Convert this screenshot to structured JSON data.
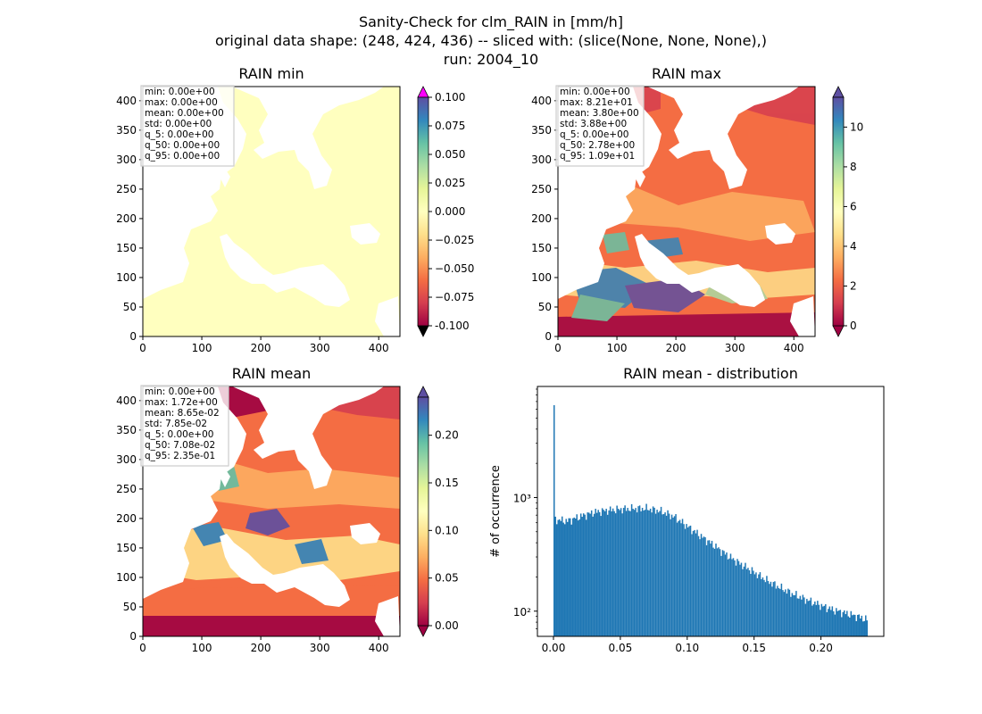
{
  "figure": {
    "title_lines": [
      "Sanity-Check for clm_RAIN in [mm/h]",
      "original data shape: (248, 424, 436) -- sliced with: (slice(None, None, None),)",
      "run: 2004_10"
    ]
  },
  "colors": {
    "spectral": [
      "#9e0142",
      "#d53e4f",
      "#f46d43",
      "#fdae61",
      "#fee08b",
      "#ffffbf",
      "#e6f598",
      "#abdda4",
      "#66c2a5",
      "#3288bd",
      "#5e4fa2"
    ],
    "under_color": "#000000",
    "over_color_min_panel": "#ff00ff",
    "histogram_bar": "#1f77b4",
    "land_fill_min_panel": "#ffffbf",
    "sea": "#ffffff"
  },
  "chart_data": [
    {
      "type": "heatmap",
      "title": "RAIN min",
      "x_ticks": [
        "0",
        "100",
        "200",
        "300",
        "400"
      ],
      "y_ticks": [
        "0",
        "50",
        "100",
        "150",
        "200",
        "250",
        "300",
        "350",
        "400"
      ],
      "xlim": [
        0,
        436
      ],
      "ylim": [
        0,
        424
      ],
      "colorbar": {
        "min": -0.1,
        "max": 0.1,
        "ticks": [
          "-0.100",
          "−0.075",
          "−0.050",
          "−0.025",
          "0.000",
          "0.025",
          "0.050",
          "0.075",
          "0.100"
        ],
        "extend": "both"
      },
      "stats": [
        "min: 0.00e+00",
        "max: 0.00e+00",
        "mean: 0.00e+00",
        "std: 0.00e+00",
        "q_5: 0.00e+00",
        "q_50: 0.00e+00",
        "q_95: 0.00e+00"
      ]
    },
    {
      "type": "heatmap",
      "title": "RAIN max",
      "x_ticks": [
        "0",
        "100",
        "200",
        "300",
        "400"
      ],
      "y_ticks": [
        "0",
        "50",
        "100",
        "150",
        "200",
        "250",
        "300",
        "350",
        "400"
      ],
      "xlim": [
        0,
        436
      ],
      "ylim": [
        0,
        424
      ],
      "colorbar": {
        "min": 0,
        "max": 11.5,
        "ticks": [
          "0",
          "2",
          "4",
          "6",
          "8",
          "10"
        ],
        "extend": "both"
      },
      "stats": [
        "min: 0.00e+00",
        "max: 8.21e+01",
        "mean: 3.80e+00",
        "std: 3.88e+00",
        "q_5: 0.00e+00",
        "q_50: 2.78e+00",
        "q_95: 1.09e+01"
      ]
    },
    {
      "type": "heatmap",
      "title": "RAIN mean",
      "x_ticks": [
        "0",
        "100",
        "200",
        "300",
        "400"
      ],
      "y_ticks": [
        "0",
        "50",
        "100",
        "150",
        "200",
        "250",
        "300",
        "350",
        "400"
      ],
      "xlim": [
        0,
        436
      ],
      "ylim": [
        0,
        424
      ],
      "colorbar": {
        "min": 0,
        "max": 0.24,
        "ticks": [
          "0.00",
          "0.05",
          "0.10",
          "0.15",
          "0.20"
        ],
        "extend": "both"
      },
      "stats": [
        "min: 0.00e+00",
        "max: 1.72e+00",
        "mean: 8.65e-02",
        "std: 7.85e-02",
        "q_5: 0.00e+00",
        "q_50: 7.08e-02",
        "q_95: 2.35e-01"
      ]
    },
    {
      "type": "bar",
      "title": "RAIN mean - distribution",
      "ylabel": "# of occurrence",
      "xlabel": "",
      "x_ticks": [
        "0.00",
        "0.05",
        "0.10",
        "0.15",
        "0.20"
      ],
      "y_ticks": [
        "10²",
        "10³"
      ],
      "y_scale": "log",
      "xlim": [
        -0.012,
        0.247
      ],
      "ylim": [
        60,
        9500
      ],
      "bins": {
        "start": 0.0,
        "end": 0.235,
        "count": 235
      },
      "first_bin_count": 6500,
      "shape": [
        [
          0.002,
          640
        ],
        [
          0.01,
          620
        ],
        [
          0.02,
          680
        ],
        [
          0.03,
          740
        ],
        [
          0.04,
          770
        ],
        [
          0.05,
          790
        ],
        [
          0.06,
          800
        ],
        [
          0.07,
          800
        ],
        [
          0.08,
          760
        ],
        [
          0.09,
          680
        ],
        [
          0.1,
          560
        ],
        [
          0.11,
          460
        ],
        [
          0.12,
          380
        ],
        [
          0.13,
          310
        ],
        [
          0.14,
          260
        ],
        [
          0.15,
          220
        ],
        [
          0.16,
          185
        ],
        [
          0.17,
          160
        ],
        [
          0.18,
          140
        ],
        [
          0.19,
          125
        ],
        [
          0.2,
          112
        ],
        [
          0.21,
          102
        ],
        [
          0.22,
          95
        ],
        [
          0.23,
          88
        ],
        [
          0.234,
          84
        ]
      ]
    }
  ]
}
